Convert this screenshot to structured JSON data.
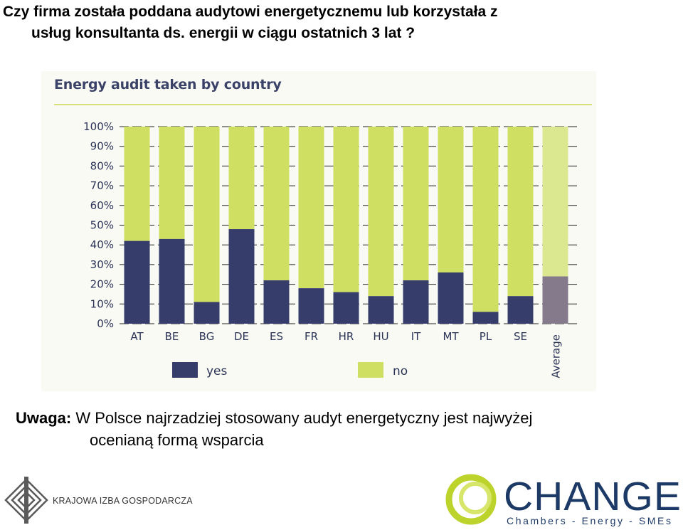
{
  "slide": {
    "title_line1": "Czy firma została poddana audytowi energetycznemu lub korzystała z",
    "title_line2": "usług konsultanta ds. energii w ciągu ostatnich 3 lat ?",
    "note_label": "Uwaga:",
    "note_line1": " W Polsce najrzadziej stosowany audyt energetyczny jest najwyżej",
    "note_line2": "ocenianą formą wsparcia"
  },
  "logos": {
    "kig_text": "KRAJOWA IZBA GOSPODARCZA",
    "change_word": "CHANGE",
    "change_tagline": "Chambers - Energy - SMEs"
  },
  "chart_data": {
    "type": "bar",
    "stacked": true,
    "percent": true,
    "title": "Energy audit taken by country",
    "categories": [
      "AT",
      "BE",
      "BG",
      "DE",
      "ES",
      "FR",
      "HR",
      "HU",
      "IT",
      "MT",
      "PL",
      "SE",
      "Average"
    ],
    "series": [
      {
        "name": "yes",
        "values": [
          42,
          43,
          11,
          48,
          22,
          18,
          16,
          14,
          22,
          26,
          6,
          14,
          24
        ]
      },
      {
        "name": "no",
        "values": [
          58,
          57,
          89,
          52,
          78,
          82,
          84,
          86,
          78,
          74,
          94,
          86,
          76
        ]
      }
    ],
    "yticks": [
      "0%",
      "10%",
      "20%",
      "30%",
      "40%",
      "50%",
      "60%",
      "70%",
      "80%",
      "90%",
      "100%"
    ],
    "ylim": [
      0,
      100
    ],
    "grid": true,
    "legend": "bottom",
    "colors": {
      "yes": "#363d6b",
      "no": "#cfdf62",
      "yes_average": "#857a8c",
      "no_average": "#dbe88f",
      "gridline": "#222222",
      "top_rule": "#d8e07a"
    }
  }
}
